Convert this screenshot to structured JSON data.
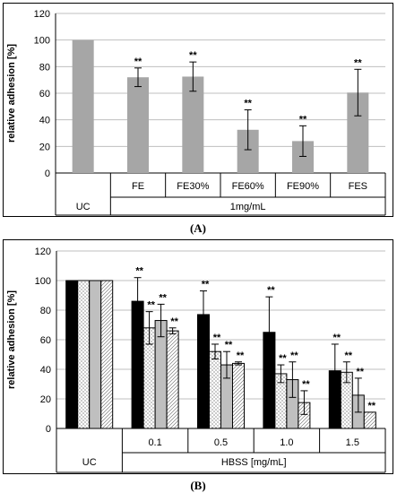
{
  "chart_data": [
    {
      "type": "bar",
      "panel_label": "(A)",
      "ylabel": "relative adhesion [%]",
      "ylim": [
        0,
        120
      ],
      "yticks": [
        "0",
        "20",
        "40",
        "60",
        "80",
        "100",
        "120"
      ],
      "categories": [
        "UC",
        "FE",
        "FE30%",
        "FE60%",
        "FE90%",
        "FES"
      ],
      "group_label": "1mg/mL",
      "values": [
        100,
        72,
        72.5,
        32.5,
        24,
        60.5
      ],
      "errors": [
        0,
        7,
        11,
        15,
        11.5,
        17.5
      ],
      "annotations": [
        "",
        "**",
        "**",
        "**",
        "**",
        "**"
      ],
      "color": "#a6a6a6",
      "grid": true
    },
    {
      "type": "bar",
      "panel_label": "(B)",
      "ylabel": "relative adhesion [%]",
      "ylim": [
        0,
        120
      ],
      "yticks": [
        "0",
        "20",
        "40",
        "60",
        "80",
        "100",
        "120"
      ],
      "categories": [
        "UC",
        "0.1",
        "0.5",
        "1.0",
        "1.5"
      ],
      "group_label": "HBSS [mg/mL]",
      "grid": true,
      "series": [
        {
          "pattern": "solid-black",
          "values": [
            100,
            86,
            77,
            65,
            39
          ],
          "errors": [
            0,
            16,
            16,
            24,
            18
          ],
          "annotations": [
            "",
            "**",
            "**",
            "**",
            "**"
          ]
        },
        {
          "pattern": "dotted",
          "values": [
            100,
            68,
            52,
            37,
            38
          ],
          "errors": [
            0,
            11,
            5,
            6,
            7
          ],
          "annotations": [
            "",
            "**",
            "**",
            "**",
            "**"
          ]
        },
        {
          "pattern": "gray",
          "values": [
            100,
            73,
            43,
            33,
            22.5
          ],
          "errors": [
            0,
            11,
            9,
            12,
            11.5
          ],
          "annotations": [
            "",
            "**",
            "**",
            "**",
            "**"
          ]
        },
        {
          "pattern": "hatched",
          "values": [
            100,
            66,
            44,
            17.5,
            11
          ],
          "errors": [
            0,
            2,
            1,
            8,
            0
          ],
          "annotations": [
            "",
            "**",
            "**",
            "**",
            "**"
          ]
        }
      ]
    }
  ]
}
